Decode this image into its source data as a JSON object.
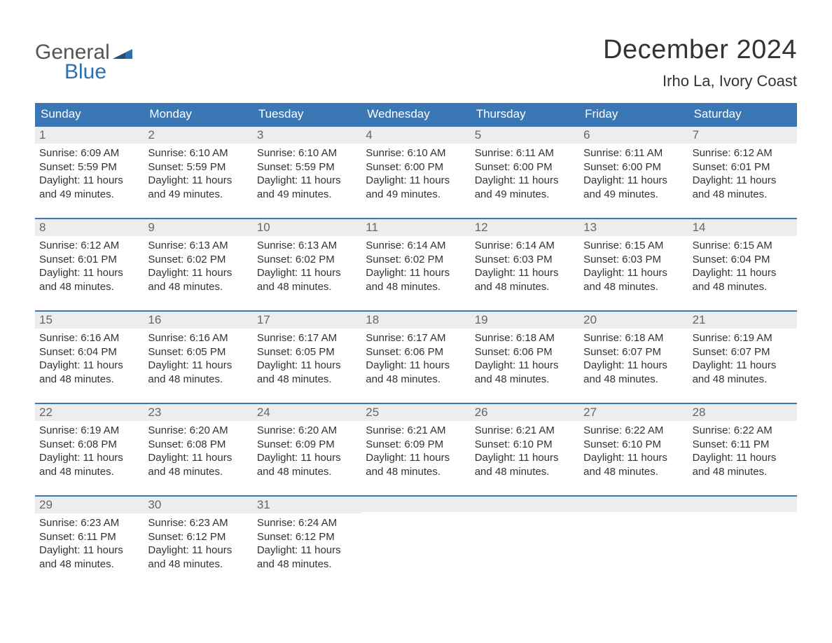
{
  "logo": {
    "word1": "General",
    "word2": "Blue"
  },
  "title": "December 2024",
  "location": "Irho La, Ivory Coast",
  "colors": {
    "header_bg": "#3b76b5",
    "header_text": "#ffffff",
    "daynum_bg": "#ededed",
    "border": "#3b76b5",
    "text": "#333333",
    "logo_blue": "#2e6fb0"
  },
  "days_of_week": [
    "Sunday",
    "Monday",
    "Tuesday",
    "Wednesday",
    "Thursday",
    "Friday",
    "Saturday"
  ],
  "labels": {
    "sunrise": "Sunrise:",
    "sunset": "Sunset:",
    "daylight": "Daylight:"
  },
  "start_offset": 0,
  "days": [
    {
      "n": 1,
      "sunrise": "6:09 AM",
      "sunset": "5:59 PM",
      "daylight": "11 hours and 49 minutes."
    },
    {
      "n": 2,
      "sunrise": "6:10 AM",
      "sunset": "5:59 PM",
      "daylight": "11 hours and 49 minutes."
    },
    {
      "n": 3,
      "sunrise": "6:10 AM",
      "sunset": "5:59 PM",
      "daylight": "11 hours and 49 minutes."
    },
    {
      "n": 4,
      "sunrise": "6:10 AM",
      "sunset": "6:00 PM",
      "daylight": "11 hours and 49 minutes."
    },
    {
      "n": 5,
      "sunrise": "6:11 AM",
      "sunset": "6:00 PM",
      "daylight": "11 hours and 49 minutes."
    },
    {
      "n": 6,
      "sunrise": "6:11 AM",
      "sunset": "6:00 PM",
      "daylight": "11 hours and 49 minutes."
    },
    {
      "n": 7,
      "sunrise": "6:12 AM",
      "sunset": "6:01 PM",
      "daylight": "11 hours and 48 minutes."
    },
    {
      "n": 8,
      "sunrise": "6:12 AM",
      "sunset": "6:01 PM",
      "daylight": "11 hours and 48 minutes."
    },
    {
      "n": 9,
      "sunrise": "6:13 AM",
      "sunset": "6:02 PM",
      "daylight": "11 hours and 48 minutes."
    },
    {
      "n": 10,
      "sunrise": "6:13 AM",
      "sunset": "6:02 PM",
      "daylight": "11 hours and 48 minutes."
    },
    {
      "n": 11,
      "sunrise": "6:14 AM",
      "sunset": "6:02 PM",
      "daylight": "11 hours and 48 minutes."
    },
    {
      "n": 12,
      "sunrise": "6:14 AM",
      "sunset": "6:03 PM",
      "daylight": "11 hours and 48 minutes."
    },
    {
      "n": 13,
      "sunrise": "6:15 AM",
      "sunset": "6:03 PM",
      "daylight": "11 hours and 48 minutes."
    },
    {
      "n": 14,
      "sunrise": "6:15 AM",
      "sunset": "6:04 PM",
      "daylight": "11 hours and 48 minutes."
    },
    {
      "n": 15,
      "sunrise": "6:16 AM",
      "sunset": "6:04 PM",
      "daylight": "11 hours and 48 minutes."
    },
    {
      "n": 16,
      "sunrise": "6:16 AM",
      "sunset": "6:05 PM",
      "daylight": "11 hours and 48 minutes."
    },
    {
      "n": 17,
      "sunrise": "6:17 AM",
      "sunset": "6:05 PM",
      "daylight": "11 hours and 48 minutes."
    },
    {
      "n": 18,
      "sunrise": "6:17 AM",
      "sunset": "6:06 PM",
      "daylight": "11 hours and 48 minutes."
    },
    {
      "n": 19,
      "sunrise": "6:18 AM",
      "sunset": "6:06 PM",
      "daylight": "11 hours and 48 minutes."
    },
    {
      "n": 20,
      "sunrise": "6:18 AM",
      "sunset": "6:07 PM",
      "daylight": "11 hours and 48 minutes."
    },
    {
      "n": 21,
      "sunrise": "6:19 AM",
      "sunset": "6:07 PM",
      "daylight": "11 hours and 48 minutes."
    },
    {
      "n": 22,
      "sunrise": "6:19 AM",
      "sunset": "6:08 PM",
      "daylight": "11 hours and 48 minutes."
    },
    {
      "n": 23,
      "sunrise": "6:20 AM",
      "sunset": "6:08 PM",
      "daylight": "11 hours and 48 minutes."
    },
    {
      "n": 24,
      "sunrise": "6:20 AM",
      "sunset": "6:09 PM",
      "daylight": "11 hours and 48 minutes."
    },
    {
      "n": 25,
      "sunrise": "6:21 AM",
      "sunset": "6:09 PM",
      "daylight": "11 hours and 48 minutes."
    },
    {
      "n": 26,
      "sunrise": "6:21 AM",
      "sunset": "6:10 PM",
      "daylight": "11 hours and 48 minutes."
    },
    {
      "n": 27,
      "sunrise": "6:22 AM",
      "sunset": "6:10 PM",
      "daylight": "11 hours and 48 minutes."
    },
    {
      "n": 28,
      "sunrise": "6:22 AM",
      "sunset": "6:11 PM",
      "daylight": "11 hours and 48 minutes."
    },
    {
      "n": 29,
      "sunrise": "6:23 AM",
      "sunset": "6:11 PM",
      "daylight": "11 hours and 48 minutes."
    },
    {
      "n": 30,
      "sunrise": "6:23 AM",
      "sunset": "6:12 PM",
      "daylight": "11 hours and 48 minutes."
    },
    {
      "n": 31,
      "sunrise": "6:24 AM",
      "sunset": "6:12 PM",
      "daylight": "11 hours and 48 minutes."
    }
  ]
}
